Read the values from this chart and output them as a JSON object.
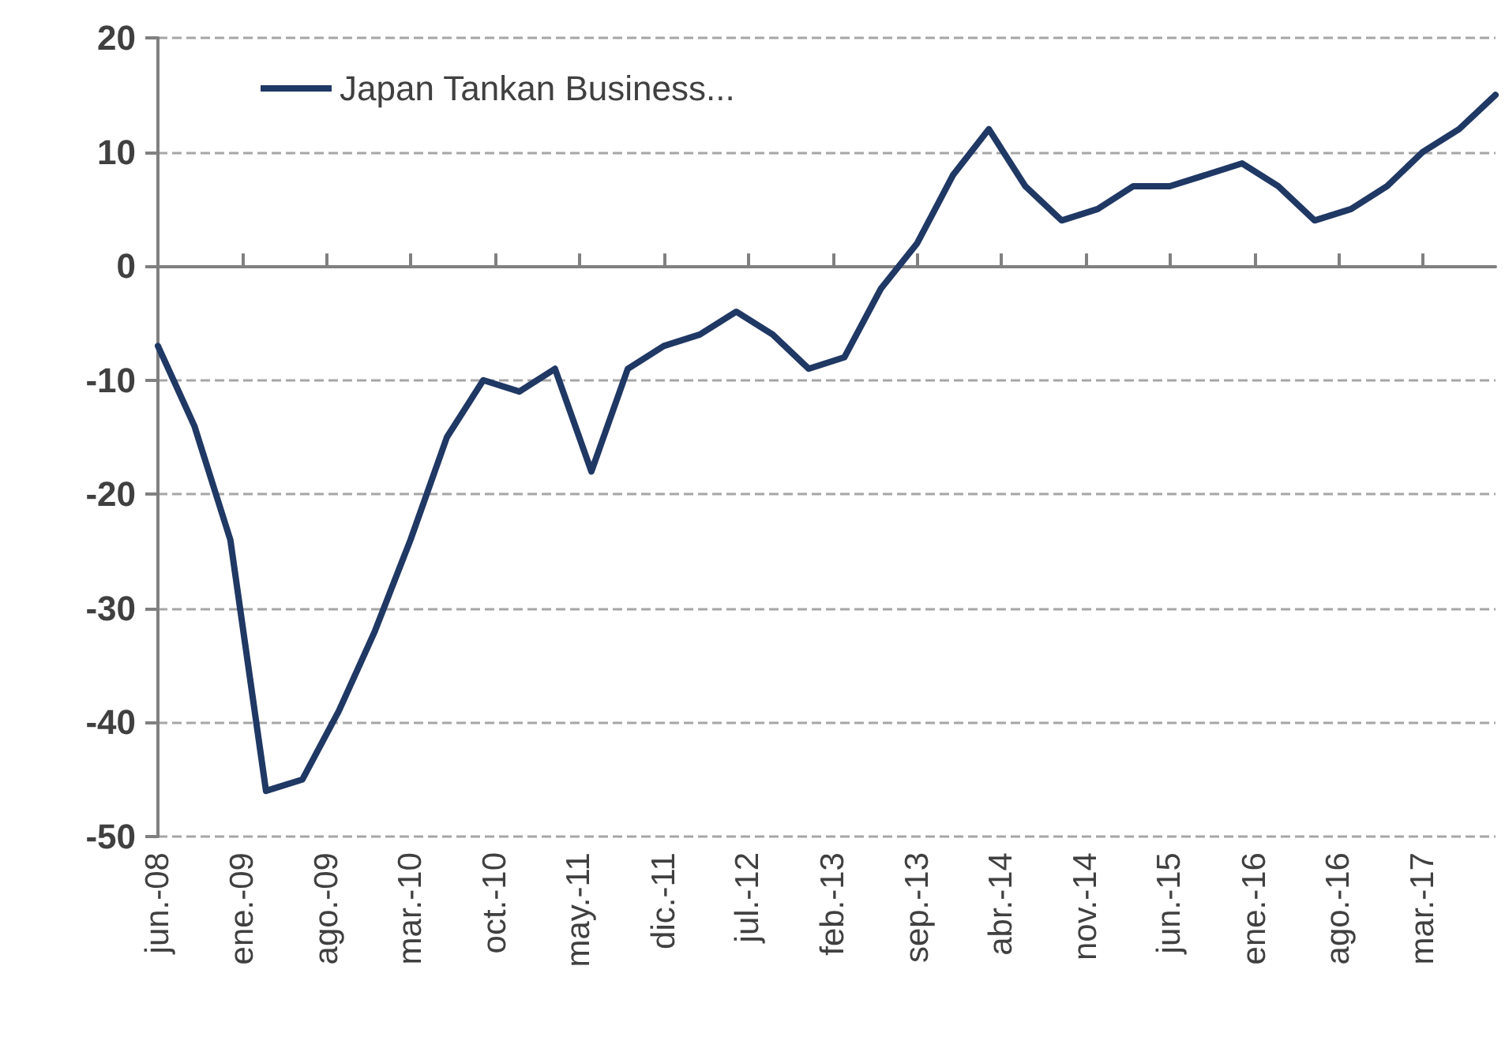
{
  "chart_data": {
    "type": "line",
    "x": [
      "2008-06",
      "2008-09",
      "2008-12",
      "2009-03",
      "2009-06",
      "2009-09",
      "2009-12",
      "2010-03",
      "2010-06",
      "2010-09",
      "2010-12",
      "2011-03",
      "2011-06",
      "2011-09",
      "2011-12",
      "2012-03",
      "2012-06",
      "2012-09",
      "2012-12",
      "2013-03",
      "2013-06",
      "2013-09",
      "2013-12",
      "2014-03",
      "2014-06",
      "2014-09",
      "2014-12",
      "2015-03",
      "2015-06",
      "2015-09",
      "2015-12",
      "2016-03",
      "2016-06",
      "2016-09",
      "2016-12",
      "2017-03",
      "2017-06",
      "2017-09"
    ],
    "series": [
      {
        "name": "Japan Tankan Business...",
        "color": "#1f3864",
        "values": [
          -7,
          -14,
          -24,
          -46,
          -45,
          -39,
          -32,
          -24,
          -15,
          -10,
          -11,
          -9,
          -18,
          -9,
          -7,
          -6,
          -4,
          -6,
          -9,
          -8,
          -2,
          2,
          8,
          12,
          7,
          4,
          5,
          7,
          7,
          8,
          9,
          7,
          4,
          5,
          7,
          10,
          12,
          15
        ]
      }
    ],
    "xlim": [
      "2008-06",
      "2017-09"
    ],
    "xticks": [
      {
        "value": "2008-06",
        "label": "jun.-08"
      },
      {
        "value": "2009-01",
        "label": "ene.-09"
      },
      {
        "value": "2009-08",
        "label": "ago.-09"
      },
      {
        "value": "2010-03",
        "label": "mar.-10"
      },
      {
        "value": "2010-10",
        "label": "oct.-10"
      },
      {
        "value": "2011-05",
        "label": "may.-11"
      },
      {
        "value": "2011-12",
        "label": "dic.-11"
      },
      {
        "value": "2012-07",
        "label": "jul.-12"
      },
      {
        "value": "2013-02",
        "label": "feb.-13"
      },
      {
        "value": "2013-09",
        "label": "sep.-13"
      },
      {
        "value": "2014-04",
        "label": "abr.-14"
      },
      {
        "value": "2014-11",
        "label": "nov.-14"
      },
      {
        "value": "2015-06",
        "label": "jun.-15"
      },
      {
        "value": "2016-01",
        "label": "ene.-16"
      },
      {
        "value": "2016-08",
        "label": "ago.-16"
      },
      {
        "value": "2017-03",
        "label": "mar.-17"
      }
    ],
    "ylim": [
      -50,
      20
    ],
    "yticks": [
      -50,
      -40,
      -30,
      -20,
      -10,
      0,
      10,
      20
    ],
    "grid": "y",
    "legend": "top left",
    "marker": "none",
    "line_style": "solid"
  }
}
